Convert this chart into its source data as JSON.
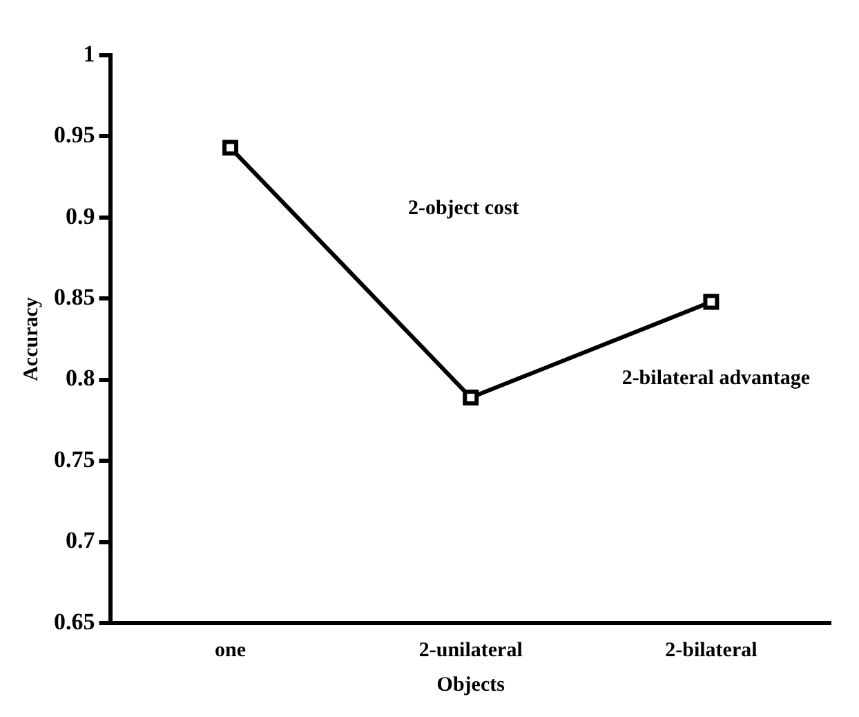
{
  "chart_data": {
    "type": "line",
    "categories": [
      "one",
      "2-unilateral",
      "2-bilateral"
    ],
    "values": [
      0.943,
      0.789,
      0.848
    ],
    "color": "#000000",
    "xlabel": "Objects",
    "ylabel": "Accuracy",
    "ylim": [
      0.65,
      1
    ],
    "yticks": [
      {
        "value": 0.65,
        "label": "0.65"
      },
      {
        "value": 0.7,
        "label": "0.7"
      },
      {
        "value": 0.75,
        "label": "0.75"
      },
      {
        "value": 0.8,
        "label": "0.8"
      },
      {
        "value": 0.85,
        "label": "0.85"
      },
      {
        "value": 0.9,
        "label": "0.9"
      },
      {
        "value": 0.95,
        "label": "0.95"
      },
      {
        "value": 1,
        "label": "1"
      }
    ],
    "annotations": [
      "2-object cost",
      "2-bilateral advantage"
    ],
    "marker": "square",
    "line_style": "solid",
    "grid": false,
    "legend": false
  }
}
